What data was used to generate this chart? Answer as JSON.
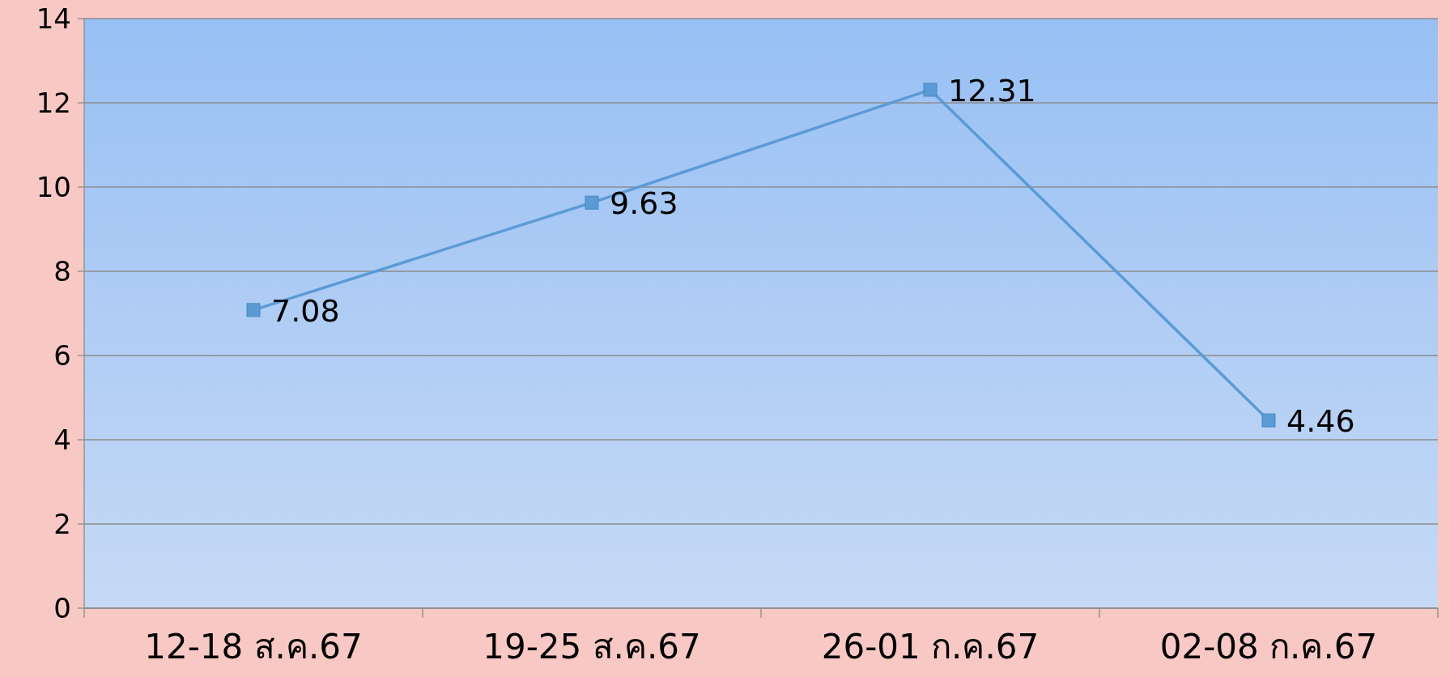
{
  "chart_data": {
    "type": "line",
    "categories": [
      "12-18 ส.ค.67",
      "19-25 ส.ค.67",
      "26-01 ก.ค.67",
      "02-08 ก.ค.67"
    ],
    "values": [
      7.08,
      9.63,
      12.31,
      4.46
    ],
    "color": "#5b9bd5",
    "ylim": [
      0,
      14
    ],
    "yticks": [
      0,
      2,
      4,
      6,
      8,
      10,
      12,
      14
    ],
    "grid": "y",
    "marker": "square",
    "line_style": "solid",
    "data_labels": true
  }
}
